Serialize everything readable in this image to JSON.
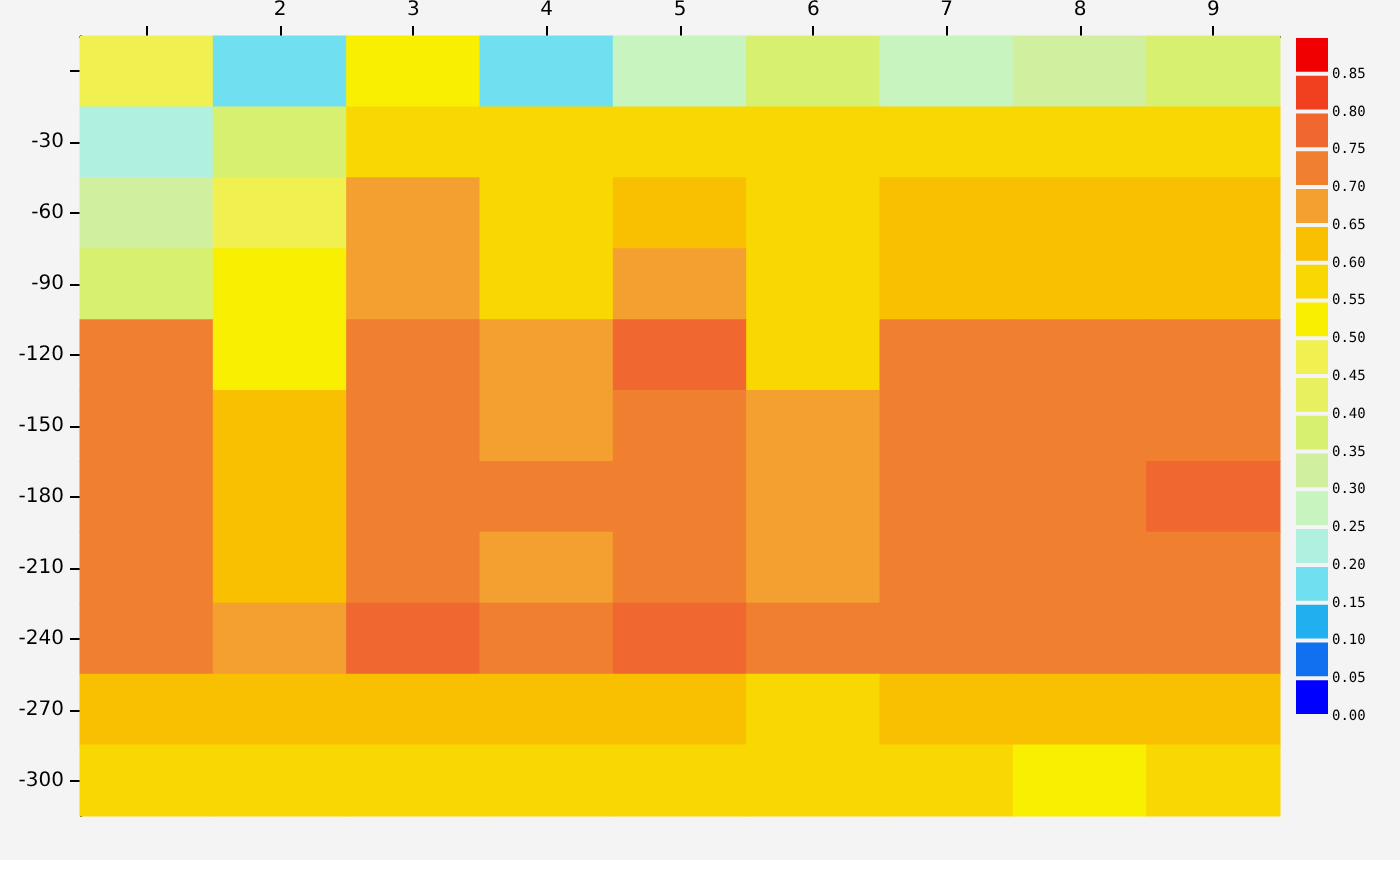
{
  "chart_data": {
    "type": "heatmap",
    "categories": [
      null,
      "2",
      "3",
      "4",
      "5",
      "6",
      "7",
      "8",
      "9"
    ],
    "y_categories": [
      null,
      "-30",
      "-60",
      "-90",
      "-120",
      "-150",
      "-180",
      "-210",
      "-240",
      "-270",
      "-300"
    ],
    "cells": [
      [
        0.45,
        0.15,
        0.5,
        0.15,
        0.25,
        0.35,
        0.25,
        0.3,
        0.35
      ],
      [
        0.2,
        0.35,
        0.55,
        0.55,
        0.55,
        0.55,
        0.55,
        0.55,
        0.55
      ],
      [
        0.3,
        0.45,
        0.65,
        0.55,
        0.6,
        0.55,
        0.6,
        0.6,
        0.6
      ],
      [
        0.35,
        0.5,
        0.65,
        0.55,
        0.65,
        0.55,
        0.6,
        0.6,
        0.6
      ],
      [
        0.7,
        0.5,
        0.7,
        0.65,
        0.75,
        0.55,
        0.7,
        0.7,
        0.7
      ],
      [
        0.7,
        0.6,
        0.7,
        0.65,
        0.7,
        0.65,
        0.7,
        0.7,
        0.7
      ],
      [
        0.7,
        0.6,
        0.7,
        0.7,
        0.7,
        0.65,
        0.7,
        0.7,
        0.75
      ],
      [
        0.7,
        0.6,
        0.7,
        0.65,
        0.7,
        0.65,
        0.7,
        0.7,
        0.7
      ],
      [
        0.7,
        0.65,
        0.75,
        0.7,
        0.75,
        0.7,
        0.7,
        0.7,
        0.7
      ],
      [
        0.6,
        0.6,
        0.6,
        0.6,
        0.6,
        0.55,
        0.6,
        0.6,
        0.6
      ],
      [
        0.55,
        0.55,
        0.55,
        0.55,
        0.55,
        0.55,
        0.55,
        0.5,
        0.55
      ]
    ],
    "clim": [
      0,
      0.9
    ],
    "cticks": [
      {
        "value": 0,
        "label": "0.00"
      },
      0.05,
      {
        "value": 0.1,
        "label": "0.10"
      },
      0.15,
      {
        "value": 0.2,
        "label": "0.20"
      },
      0.25,
      {
        "value": 0.3,
        "label": "0.30"
      },
      0.35,
      {
        "value": 0.4,
        "label": "0.40"
      },
      0.45,
      {
        "value": 0.5,
        "label": "0.50"
      },
      0.55,
      {
        "value": 0.6,
        "label": "0.60"
      },
      0.65,
      {
        "value": 0.7,
        "label": "0.70"
      },
      0.75,
      {
        "value": 0.8,
        "label": "0.80"
      },
      0.85
    ],
    "grid": false
  }
}
